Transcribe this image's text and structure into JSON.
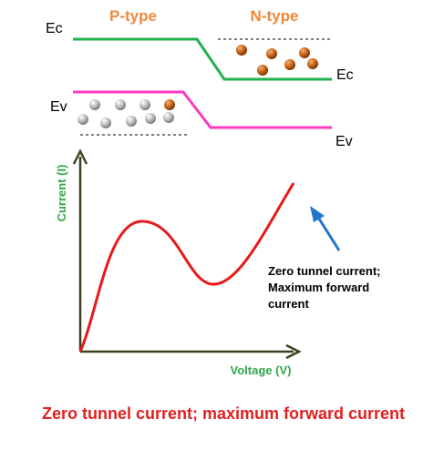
{
  "band_diagram": {
    "p_region_label": "P-type",
    "n_region_label": "N-type",
    "p_conduction_band_label": "Ec",
    "n_conduction_band_label": "Ec",
    "p_valence_band_label": "Ev",
    "n_valence_band_label": "Ev",
    "region_label_color": "#f0883a",
    "conduction_band_color": "#22b24c",
    "valence_band_color": "#ff3ac0",
    "hole_color": "#c8c8c8",
    "electron_color": "#c86414"
  },
  "iv_curve": {
    "y_axis_label": "Current (I)",
    "x_axis_label": "Voltage (V)",
    "axis_label_color": "#2ea84a",
    "curve_color": "#e8191b",
    "annotation_arrow_color": "#1f78c8",
    "annotation_text": [
      "Zero tunnel current;",
      "Maximum forward",
      "current"
    ]
  },
  "caption": {
    "text": "Zero tunnel current; maximum forward current",
    "color": "#e21f1f"
  }
}
